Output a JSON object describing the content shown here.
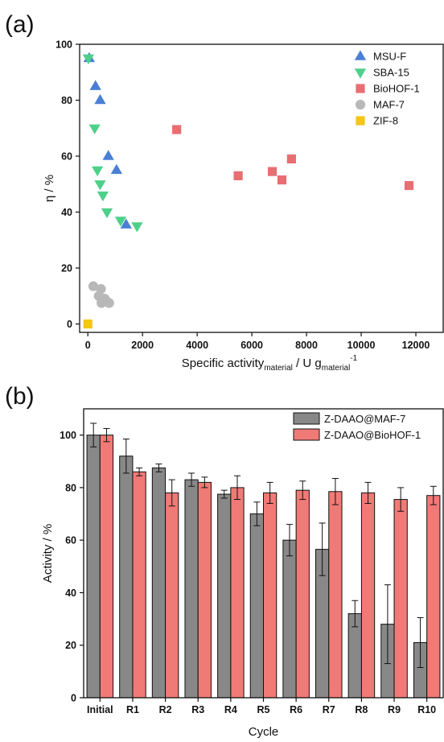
{
  "chart_data": [
    {
      "type": "scatter",
      "panel_label": "(a)",
      "title": "",
      "xlabel": "Specific activity",
      "xlabel_sub1": "material",
      "xlabel_mid": " / U g",
      "xlabel_sub2": "material",
      "xlabel_sup": "-1",
      "ylabel": "η / %",
      "xlim": [
        -300,
        13000
      ],
      "ylim": [
        -3,
        100
      ],
      "xticks": [
        0,
        2000,
        4000,
        6000,
        8000,
        10000,
        12000
      ],
      "yticks": [
        0,
        20,
        40,
        60,
        80,
        100
      ],
      "legend_position": "top-right",
      "series": [
        {
          "name": "MSU-F",
          "color": "#4a7fd4",
          "marker": "triangle-up",
          "points": [
            [
              50,
              95
            ],
            [
              280,
              85
            ],
            [
              450,
              80
            ],
            [
              750,
              60
            ],
            [
              1050,
              55
            ],
            [
              1400,
              35.5
            ]
          ]
        },
        {
          "name": "SBA-15",
          "color": "#4fd08a",
          "marker": "triangle-down",
          "points": [
            [
              20,
              95
            ],
            [
              250,
              70
            ],
            [
              350,
              55
            ],
            [
              450,
              50
            ],
            [
              550,
              46
            ],
            [
              700,
              40
            ],
            [
              1200,
              37
            ],
            [
              1800,
              35
            ]
          ]
        },
        {
          "name": "BioHOF-1",
          "color": "#e86e72",
          "marker": "square",
          "points": [
            [
              3250,
              69.5
            ],
            [
              5500,
              53
            ],
            [
              6750,
              54.5
            ],
            [
              7100,
              51.5
            ],
            [
              7450,
              59
            ],
            [
              11750,
              49.5
            ]
          ]
        },
        {
          "name": "MAF-7",
          "color": "#b8b8b8",
          "marker": "circle",
          "points": [
            [
              200,
              13.5
            ],
            [
              400,
              10
            ],
            [
              480,
              12.5
            ],
            [
              550,
              8.5
            ],
            [
              620,
              9
            ],
            [
              700,
              8
            ],
            [
              780,
              7.5
            ],
            [
              500,
              7.5
            ]
          ]
        },
        {
          "name": "ZIF-8",
          "color": "#f5c518",
          "marker": "square",
          "points": [
            [
              0,
              0
            ]
          ]
        }
      ]
    },
    {
      "type": "bar",
      "panel_label": "(b)",
      "title": "",
      "xlabel": "Cycle",
      "ylabel": "Activity / %",
      "ylim": [
        0,
        110
      ],
      "yticks": [
        0,
        20,
        40,
        60,
        80,
        100
      ],
      "legend_position": "top-right",
      "categories": [
        "Initial",
        "R1",
        "R2",
        "R3",
        "R4",
        "R5",
        "R6",
        "R7",
        "R8",
        "R9",
        "R10"
      ],
      "series": [
        {
          "name": "Z-DAAO@MAF-7",
          "color": "#888888",
          "values": [
            100,
            92,
            87.5,
            83,
            77.5,
            70,
            60,
            56.5,
            32,
            28,
            21
          ],
          "errors": [
            4.5,
            6.5,
            1.5,
            2.5,
            1.5,
            4.5,
            6,
            10,
            5,
            15,
            9.5
          ]
        },
        {
          "name": "Z-DAAO@BioHOF-1",
          "color": "#f07a76",
          "values": [
            100,
            86,
            78,
            82,
            80,
            78,
            79,
            78.5,
            78,
            75.5,
            77
          ],
          "errors": [
            2.5,
            1.5,
            5,
            2,
            4.5,
            4,
            3.5,
            5,
            4,
            4.5,
            3.5
          ]
        }
      ]
    }
  ]
}
